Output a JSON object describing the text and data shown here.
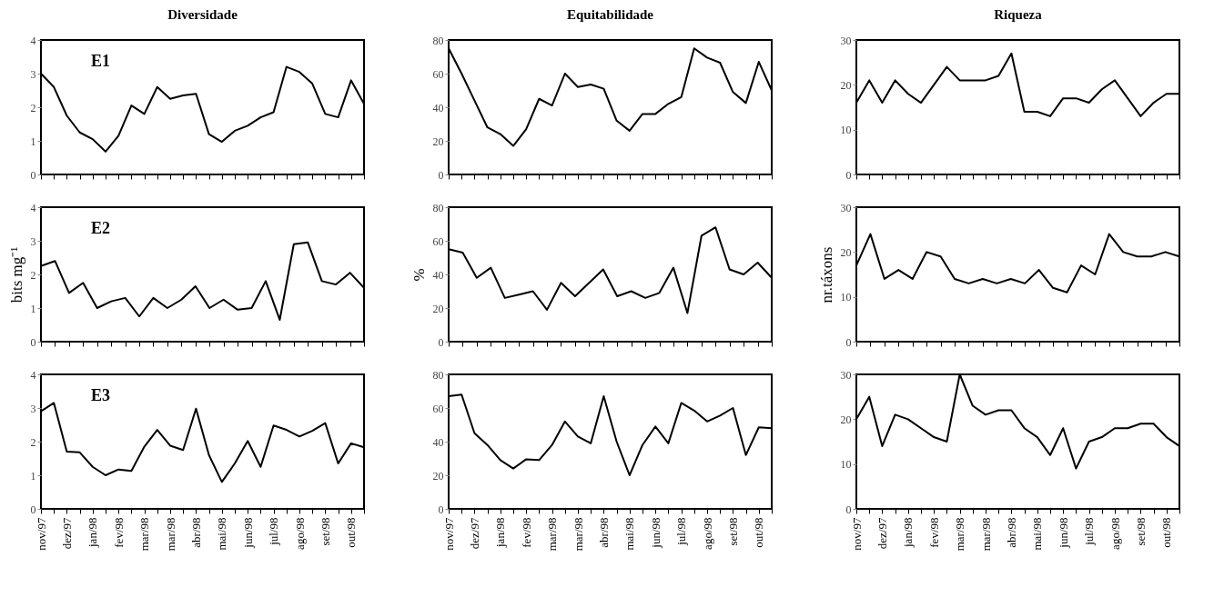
{
  "chart_data": [
    {
      "type": "line",
      "title": "Diversidade",
      "annotations": [
        "E1"
      ],
      "color": "#000000",
      "ylim": [
        0,
        4
      ],
      "yticks": [
        0,
        1,
        2,
        3,
        4
      ],
      "tick_labels": "y",
      "categories": [
        null,
        null,
        null,
        null,
        null,
        null,
        null,
        null,
        null,
        null,
        null,
        null,
        null,
        null,
        null,
        null,
        null,
        null,
        null,
        null,
        null,
        null,
        null,
        null,
        null,
        null
      ],
      "values": [
        3.0,
        2.6,
        1.75,
        1.25,
        1.05,
        0.68,
        1.15,
        2.05,
        1.8,
        2.6,
        2.25,
        2.35,
        2.4,
        1.2,
        0.97,
        1.3,
        1.45,
        1.7,
        1.85,
        3.2,
        3.05,
        2.7,
        1.8,
        1.7,
        2.8,
        2.1
      ]
    },
    {
      "type": "line",
      "title": "Equitabilidade",
      "color": "#000000",
      "ylim": [
        0,
        80
      ],
      "yticks": [
        0,
        20,
        40,
        60,
        80
      ],
      "tick_labels": "y",
      "categories": [
        null,
        null,
        null,
        null,
        null,
        null,
        null,
        null,
        null,
        null,
        null,
        null,
        null,
        null,
        null,
        null,
        null,
        null,
        null,
        null,
        null,
        null,
        null,
        null,
        null,
        null
      ],
      "values": [
        75,
        60,
        44,
        28,
        24,
        17,
        27,
        45,
        41,
        60,
        52,
        53.5,
        51,
        32,
        26,
        36,
        36,
        42,
        46,
        75,
        69.5,
        66.5,
        49,
        42.5,
        67,
        50
      ]
    },
    {
      "type": "line",
      "title": "Riqueza",
      "color": "#000000",
      "ylim": [
        0,
        30
      ],
      "yticks": [
        0,
        10,
        20,
        30
      ],
      "tick_labels": "y",
      "categories": [
        null,
        null,
        null,
        null,
        null,
        null,
        null,
        null,
        null,
        null,
        null,
        null,
        null,
        null,
        null,
        null,
        null,
        null,
        null,
        null,
        null,
        null,
        null,
        null,
        null,
        null
      ],
      "values": [
        16,
        21,
        16,
        21,
        18,
        16,
        20,
        24,
        21,
        21,
        21,
        22,
        27,
        14,
        14,
        13,
        17,
        17,
        16,
        19,
        21,
        17,
        13,
        16,
        18,
        18
      ]
    },
    {
      "type": "line",
      "ylabel": "bits mg⁻¹",
      "annotations": [
        "E2"
      ],
      "color": "#000000",
      "ylim": [
        0,
        4
      ],
      "yticks": [
        0,
        1,
        2,
        3,
        4
      ],
      "tick_labels": "y",
      "categories": [
        null,
        null,
        null,
        null,
        null,
        null,
        null,
        null,
        null,
        null,
        null,
        null,
        null,
        null,
        null,
        null,
        null,
        null,
        null,
        null,
        null,
        null,
        null,
        null
      ],
      "values": [
        2.25,
        2.4,
        1.45,
        1.75,
        1.0,
        1.2,
        1.3,
        0.75,
        1.3,
        1.0,
        1.25,
        1.65,
        1.0,
        1.25,
        0.95,
        1.0,
        1.8,
        0.65,
        2.9,
        2.95,
        1.8,
        1.7,
        2.05,
        1.6
      ]
    },
    {
      "type": "line",
      "ylabel": "%",
      "color": "#000000",
      "ylim": [
        0,
        80
      ],
      "yticks": [
        0,
        20,
        40,
        60,
        80
      ],
      "tick_labels": "y",
      "categories": [
        null,
        null,
        null,
        null,
        null,
        null,
        null,
        null,
        null,
        null,
        null,
        null,
        null,
        null,
        null,
        null,
        null,
        null,
        null,
        null,
        null,
        null,
        null,
        null
      ],
      "values": [
        55,
        53,
        38,
        44,
        26,
        28,
        30,
        19,
        35,
        27,
        35,
        43,
        27,
        30,
        26,
        29,
        44,
        17,
        63,
        68,
        43,
        40,
        47,
        38
      ]
    },
    {
      "type": "line",
      "ylabel": "nr.táxons",
      "color": "#000000",
      "ylim": [
        0,
        30
      ],
      "yticks": [
        0,
        10,
        20,
        30
      ],
      "tick_labels": "y",
      "categories": [
        null,
        null,
        null,
        null,
        null,
        null,
        null,
        null,
        null,
        null,
        null,
        null,
        null,
        null,
        null,
        null,
        null,
        null,
        null,
        null,
        null,
        null,
        null,
        null
      ],
      "values": [
        17,
        24,
        14,
        16,
        14,
        20,
        19,
        14,
        13,
        14,
        13,
        14,
        13,
        16,
        12,
        11,
        17,
        15,
        24,
        20,
        19,
        19,
        20,
        19
      ]
    },
    {
      "type": "line",
      "annotations": [
        "E3"
      ],
      "color": "#000000",
      "ylim": [
        0,
        4
      ],
      "yticks": [
        0,
        1,
        2,
        3,
        4
      ],
      "categories": [
        "nov/97",
        null,
        "dez/97",
        null,
        "jan/98",
        null,
        "fev/98",
        null,
        "mar/98",
        null,
        "mar/98",
        null,
        "abr/98",
        null,
        "mai/98",
        null,
        "jun/98",
        null,
        "jul/98",
        null,
        "ago/98",
        null,
        "set/98",
        null,
        "out/98",
        null
      ],
      "values": [
        2.9,
        3.15,
        1.7,
        1.68,
        1.25,
        1.0,
        1.17,
        1.13,
        1.85,
        2.35,
        1.88,
        1.75,
        2.98,
        1.6,
        0.8,
        1.35,
        2.02,
        1.25,
        2.48,
        2.35,
        2.15,
        2.32,
        2.55,
        1.35,
        1.95,
        1.83
      ]
    },
    {
      "type": "line",
      "color": "#000000",
      "ylim": [
        0,
        80
      ],
      "yticks": [
        0,
        20,
        40,
        60,
        80
      ],
      "categories": [
        "nov/97",
        null,
        "dez/97",
        null,
        "jan/98",
        null,
        "fev/98",
        null,
        "mar/98",
        null,
        "mar/98",
        null,
        "abr/98",
        null,
        "mai/98",
        null,
        "jun/98",
        null,
        "jul/98",
        null,
        "ago/98",
        null,
        "set/98",
        null,
        "out/98",
        null
      ],
      "values": [
        67,
        68,
        45,
        38,
        29,
        24,
        29.5,
        29,
        38,
        52,
        43,
        39,
        67,
        40,
        20,
        38,
        49,
        39,
        63,
        58.5,
        52,
        55.5,
        60,
        32,
        48.5,
        48
      ]
    },
    {
      "type": "line",
      "color": "#000000",
      "ylim": [
        0,
        30
      ],
      "yticks": [
        0,
        10,
        20,
        30
      ],
      "categories": [
        "nov/97",
        null,
        "dez/97",
        null,
        "jan/98",
        null,
        "fev/98",
        null,
        "mar/98",
        null,
        "mar/98",
        null,
        "abr/98",
        null,
        "mai/98",
        null,
        "jun/98",
        null,
        "jul/98",
        null,
        "ago/98",
        null,
        "set/98",
        null,
        "out/98",
        null
      ],
      "values": [
        20,
        25,
        14,
        21,
        20,
        18,
        16,
        15,
        30,
        23,
        21,
        22,
        22,
        18,
        16,
        12,
        18,
        9,
        15,
        16,
        18,
        18,
        19,
        19,
        16,
        14
      ]
    }
  ]
}
